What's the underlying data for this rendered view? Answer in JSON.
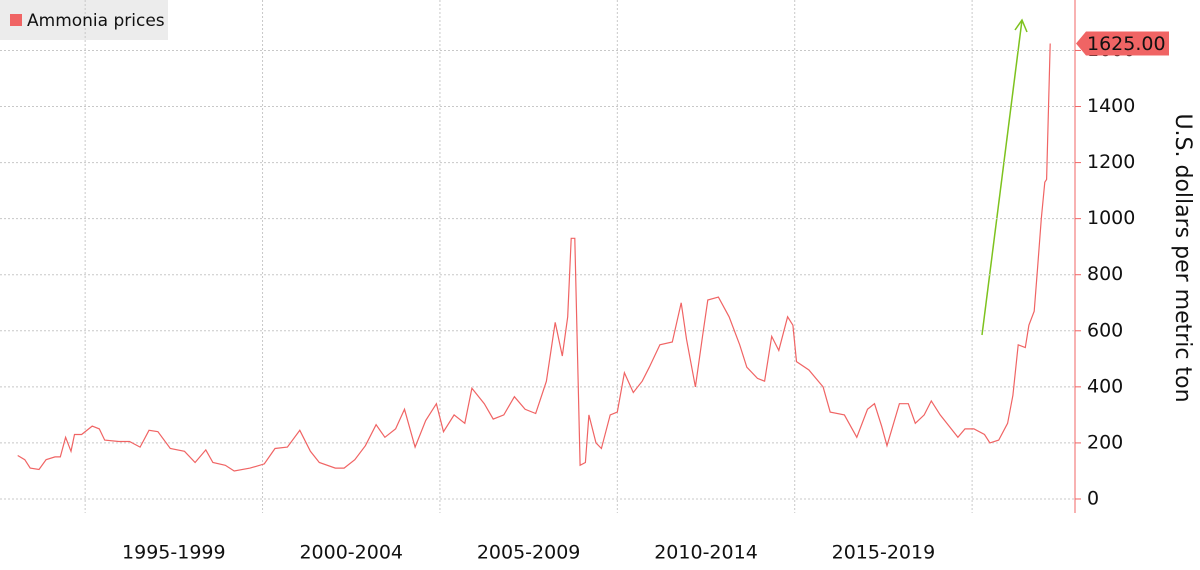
{
  "chart_data": {
    "type": "line",
    "legend": "top-left",
    "y_axis_title": "U.S. dollars per metric ton",
    "x": [
      1993.1,
      1993.3,
      1993.45,
      1993.7,
      1993.9,
      1994.15,
      1994.3,
      1994.45,
      1994.6,
      1994.7,
      1994.9,
      1995.2,
      1995.4,
      1995.55,
      1995.95,
      1996.25,
      1996.55,
      1996.8,
      1997.05,
      1997.4,
      1997.8,
      1998.1,
      1998.4,
      1998.6,
      1998.95,
      1999.2,
      1999.65,
      2000.05,
      2000.35,
      2000.7,
      2001.05,
      2001.35,
      2001.6,
      2002.05,
      2002.3,
      2002.6,
      2002.9,
      2003.2,
      2003.45,
      2003.75,
      2004.0,
      2004.3,
      2004.6,
      2004.9,
      2005.1,
      2005.4,
      2005.7,
      2005.9,
      2006.25,
      2006.5,
      2006.8,
      2007.1,
      2007.4,
      2007.7,
      2008.0,
      2008.25,
      2008.45,
      2008.6,
      2008.7,
      2008.8,
      2008.95,
      2009.1,
      2009.2,
      2009.4,
      2009.55,
      2009.8,
      2010.0,
      2010.2,
      2010.45,
      2010.7,
      2010.9,
      2011.2,
      2011.55,
      2011.8,
      2011.95,
      2012.2,
      2012.4,
      2012.55,
      2012.85,
      2013.15,
      2013.45,
      2013.65,
      2013.95,
      2014.15,
      2014.35,
      2014.55,
      2014.8,
      2014.95,
      2015.05,
      2015.4,
      2015.8,
      2016.0,
      2016.4,
      2016.75,
      2017.05,
      2017.25,
      2017.45,
      2017.6,
      2017.95,
      2018.2,
      2018.4,
      2018.65,
      2018.85,
      2019.1,
      2019.35,
      2019.6,
      2019.8,
      2020.05,
      2020.35,
      2020.5,
      2020.75,
      2021.0,
      2021.15,
      2021.3,
      2021.5,
      2021.6,
      2021.75,
      2021.85,
      2021.95,
      2022.05,
      2022.1,
      2022.2
    ],
    "series": [
      {
        "name": "Ammonia prices",
        "color": "#f06464",
        "values": [
          155,
          140,
          110,
          105,
          140,
          150,
          150,
          220,
          170,
          230,
          230,
          260,
          250,
          210,
          205,
          205,
          185,
          245,
          240,
          180,
          170,
          130,
          175,
          130,
          120,
          100,
          110,
          125,
          180,
          185,
          245,
          170,
          130,
          110,
          110,
          140,
          190,
          265,
          220,
          250,
          320,
          185,
          280,
          340,
          240,
          300,
          270,
          395,
          340,
          285,
          300,
          365,
          320,
          305,
          420,
          630,
          510,
          650,
          930,
          930,
          120,
          130,
          300,
          200,
          180,
          300,
          310,
          450,
          380,
          420,
          470,
          550,
          560,
          700,
          570,
          400,
          580,
          710,
          720,
          650,
          550,
          470,
          430,
          420,
          580,
          530,
          650,
          620,
          490,
          460,
          400,
          310,
          300,
          220,
          320,
          340,
          260,
          190,
          340,
          340,
          270,
          300,
          350,
          300,
          260,
          220,
          250,
          250,
          230,
          200,
          210,
          270,
          370,
          550,
          540,
          620,
          670,
          830,
          1000,
          1130,
          1140,
          1625
        ],
        "value_labels": [
          null,
          null,
          null,
          null,
          null,
          null,
          null,
          null,
          null,
          null,
          null,
          null,
          null,
          null,
          null,
          null,
          null,
          null,
          null,
          null,
          null,
          null,
          null,
          null,
          null,
          null,
          null,
          null,
          null,
          null,
          null,
          null,
          null,
          null,
          null,
          null,
          null,
          null,
          null,
          null,
          null,
          null,
          null,
          null,
          null,
          null,
          null,
          null,
          null,
          null,
          null,
          null,
          null,
          null,
          null,
          null,
          null,
          null,
          null,
          null,
          null,
          null,
          null,
          null,
          null,
          null,
          null,
          null,
          null,
          null,
          null,
          null,
          null,
          null,
          null,
          null,
          null,
          null,
          null,
          null,
          null,
          null,
          null,
          null,
          null,
          null,
          null,
          null,
          null,
          null,
          null,
          null,
          null,
          null,
          null,
          null,
          null,
          null,
          null,
          null,
          null,
          null,
          null,
          null,
          null,
          null,
          null,
          null,
          null,
          null,
          null,
          null,
          null,
          null,
          null,
          null,
          null,
          null,
          null,
          null,
          null,
          "1625.00"
        ]
      }
    ],
    "xlim": [
      1992.6,
      2022.9
    ],
    "xticks": [
      {
        "value": 1997.5,
        "label": "1995-1999"
      },
      {
        "value": 2002.5,
        "label": "2000-2004"
      },
      {
        "value": 2007.5,
        "label": "2005-2009"
      },
      {
        "value": 2012.5,
        "label": "2010-2014"
      },
      {
        "value": 2017.5,
        "label": "2015-2019"
      }
    ],
    "xgrid": [
      1995,
      2000,
      2005,
      2010,
      2015,
      2020
    ],
    "ylim": [
      -50,
      1780
    ],
    "yticks": [
      0,
      200,
      400,
      600,
      800,
      1000,
      1200,
      1400,
      1600
    ],
    "grid": true
  }
}
